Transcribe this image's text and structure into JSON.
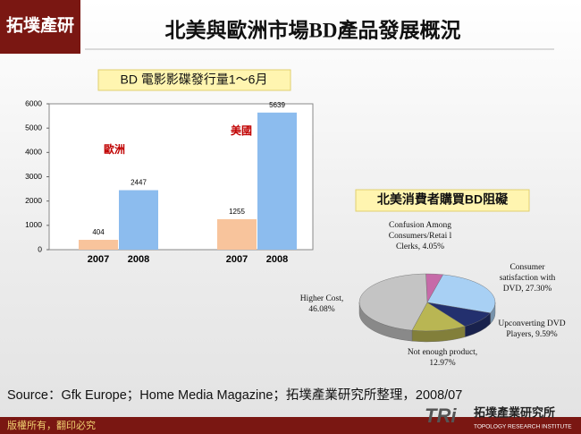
{
  "header": {
    "title": "北美與歐洲市場BD產品發展概況",
    "logo": "拓墣產研"
  },
  "chart_data": [
    {
      "type": "bar",
      "title": "BD 電影影碟發行量1～6月",
      "categories": [
        "2007",
        "2008",
        "2007",
        "2008"
      ],
      "values": [
        404,
        2447,
        1255,
        5639
      ],
      "colors": [
        "#f8c49c",
        "#8cbcee",
        "#f8c49c",
        "#8cbcee"
      ],
      "group_labels": [
        "歐洲",
        "美國"
      ],
      "ylim": [
        0,
        6000
      ],
      "yticks": [
        0,
        1000,
        2000,
        3000,
        4000,
        5000,
        6000
      ],
      "grid": false
    },
    {
      "type": "pie",
      "title": "北美消費者購買BD阻礙",
      "values": [
        4.05,
        27.3,
        9.59,
        12.97,
        46.08
      ],
      "value_labels": [
        "Confusion Among Consumers/Retai l Clerks, 4.05%",
        "Consumer satisfaction with DVD, 27.30%",
        "Upconverting DVD Players, 9.59%",
        "Not enough product, 12.97%",
        "Higher Cost, 46.08%"
      ],
      "colors": [
        "#c66aa8",
        "#a8d0f4",
        "#23306e",
        "#b9b653",
        "#c4c4c4"
      ]
    }
  ],
  "footer": {
    "source": "Source：Gfk Europe；Home Media Magazine；拓墣產業研究所整理，2008/07",
    "copyright": "版權所有，翻印必究",
    "brand": "TRi",
    "institute": "拓墣產業研究所",
    "institute_en": "TOPOLOGY RESEARCH INSTITUTE"
  }
}
